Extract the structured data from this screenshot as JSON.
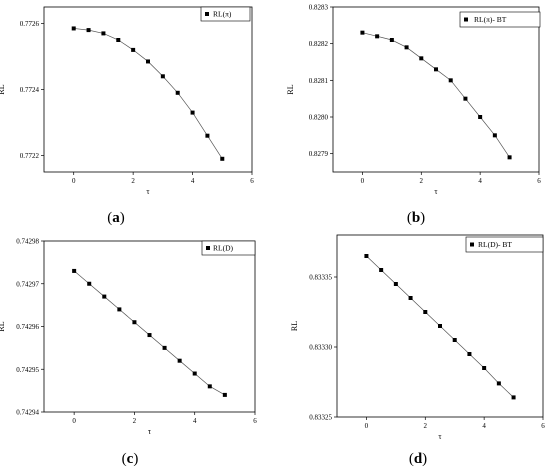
{
  "chart_data": [
    {
      "type": "line",
      "panel_label": "a",
      "ylabel": "RL",
      "xlabel": "τ",
      "xlim": [
        -1,
        6
      ],
      "xticks": [
        0,
        2,
        4,
        6
      ],
      "ylim": [
        0.77215,
        0.77265
      ],
      "yticks": [
        0.7722,
        0.7724,
        0.7726
      ],
      "ytick_labels": [
        "0.7722",
        "0.7724",
        "0.7726"
      ],
      "legend": "top-right",
      "series": [
        {
          "name": "RL(π)",
          "x": [
            0,
            0.5,
            1,
            1.5,
            2,
            2.5,
            3,
            3.5,
            4,
            4.5,
            5
          ],
          "y": [
            0.772585,
            0.77258,
            0.77257,
            0.77255,
            0.77252,
            0.772485,
            0.77244,
            0.77239,
            0.77233,
            0.77226,
            0.77219
          ]
        }
      ]
    },
    {
      "type": "line",
      "panel_label": "b",
      "ylabel": "RL",
      "xlabel": "τ",
      "xlim": [
        -1,
        6
      ],
      "xticks": [
        0,
        2,
        4,
        6
      ],
      "ylim": [
        0.82785,
        0.8283
      ],
      "yticks": [
        0.8279,
        0.828,
        0.8281,
        0.8282,
        0.8283
      ],
      "ytick_labels": [
        "0.8279",
        "0.8280",
        "0.8281",
        "0.8282",
        "0.8283"
      ],
      "legend": "top-right",
      "series": [
        {
          "name": "RL(π)- BT",
          "x": [
            0,
            0.5,
            1,
            1.5,
            2,
            2.5,
            3,
            3.5,
            4,
            4.5,
            5
          ],
          "y": [
            0.82823,
            0.82822,
            0.82821,
            0.82819,
            0.82816,
            0.82813,
            0.8281,
            0.82805,
            0.828,
            0.82795,
            0.82789
          ]
        }
      ]
    },
    {
      "type": "line",
      "panel_label": "c",
      "ylabel": "RL",
      "xlabel": "τ",
      "xlim": [
        -1,
        6
      ],
      "xticks": [
        0,
        2,
        4,
        6
      ],
      "ylim": [
        0.74294,
        0.74298
      ],
      "yticks": [
        0.74294,
        0.74295,
        0.74296,
        0.74297,
        0.74298
      ],
      "ytick_labels": [
        "0.74294",
        "0.74295",
        "0.74296",
        "0.74297",
        "0.74298"
      ],
      "legend": "top-right",
      "series": [
        {
          "name": "RL(D)",
          "x": [
            0,
            0.5,
            1,
            1.5,
            2,
            2.5,
            3,
            3.5,
            4,
            4.5,
            5
          ],
          "y": [
            0.742973,
            0.74297,
            0.742967,
            0.742964,
            0.742961,
            0.742958,
            0.742955,
            0.742952,
            0.742949,
            0.742946,
            0.742944
          ]
        }
      ]
    },
    {
      "type": "line",
      "panel_label": "d",
      "ylabel": "RL",
      "xlabel": "τ",
      "xlim": [
        -1,
        6
      ],
      "xticks": [
        0,
        2,
        4,
        6
      ],
      "ylim": [
        0.83325,
        0.83338
      ],
      "yticks": [
        0.83325,
        0.8333,
        0.83335
      ],
      "ytick_labels": [
        "0.83325",
        "0.83330",
        "0.83335"
      ],
      "legend": "top-right",
      "series": [
        {
          "name": "RL(D)- BT",
          "x": [
            0,
            0.5,
            1,
            1.5,
            2,
            2.5,
            3,
            3.5,
            4,
            4.5,
            5
          ],
          "y": [
            0.833365,
            0.833355,
            0.833345,
            0.833335,
            0.833325,
            0.833315,
            0.833305,
            0.833295,
            0.833285,
            0.833274,
            0.833264
          ]
        }
      ]
    }
  ]
}
